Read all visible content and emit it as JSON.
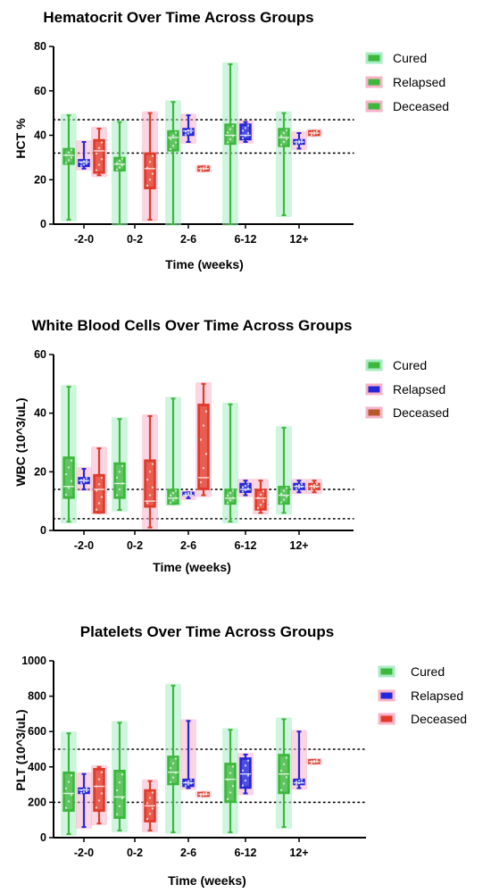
{
  "colors": {
    "cured": "#3db83d",
    "relapsed": "#2626d9",
    "deceased": "#e23a2a",
    "deceased_alt": "#b8592a",
    "halo_cured": "#a8ecc4",
    "halo_other": "#f7b3c8"
  },
  "chart_data": [
    {
      "type": "box",
      "title": "Hematocrit Over Time Across Groups",
      "xlabel": "Time (weeks)",
      "ylabel": "HCT %",
      "categories": [
        "-2-0",
        "0-2",
        "2-6",
        "6-12",
        "12+"
      ],
      "ylim": [
        0,
        80
      ],
      "yticks": [
        0,
        20,
        40,
        60,
        80
      ],
      "reference_lines": [
        32,
        47
      ],
      "legend": [
        "Cured",
        "Relapsed",
        "Deceased"
      ],
      "legend_position": "top-right",
      "series": [
        {
          "name": "Cured",
          "color_key": "cured",
          "boxes": [
            {
              "min": 2,
              "q1": 27,
              "median": 31,
              "q3": 34,
              "max": 49
            },
            {
              "min": 0,
              "q1": 24,
              "median": 27,
              "q3": 30,
              "max": 46
            },
            {
              "min": 0,
              "q1": 33,
              "median": 39,
              "q3": 42,
              "max": 55
            },
            {
              "min": 0,
              "q1": 36,
              "median": 40,
              "q3": 45,
              "max": 72
            },
            {
              "min": 4,
              "q1": 35,
              "median": 39,
              "q3": 43,
              "max": 50
            }
          ]
        },
        {
          "name": "Relapsed",
          "color_key": "relapsed",
          "boxes": [
            {
              "min": 25,
              "q1": 26,
              "median": 28,
              "q3": 29,
              "max": 37
            },
            null,
            {
              "min": 37,
              "q1": 40,
              "median": 42,
              "q3": 43,
              "max": 49
            },
            {
              "min": 37,
              "q1": 38,
              "median": 40,
              "q3": 45,
              "max": 46
            },
            {
              "min": 34,
              "q1": 36,
              "median": 37,
              "q3": 38,
              "max": 41
            }
          ]
        },
        {
          "name": "Deceased",
          "color_key": "deceased",
          "boxes": [
            {
              "min": 22,
              "q1": 23,
              "median": 33,
              "q3": 38,
              "max": 43
            },
            {
              "min": 2,
              "q1": 16,
              "median": 25,
              "q3": 32,
              "max": 50
            },
            {
              "min": 24,
              "q1": 24,
              "median": 25,
              "q3": 26,
              "max": 26
            },
            null,
            {
              "min": 40,
              "q1": 40,
              "median": 41,
              "q3": 42,
              "max": 42
            }
          ]
        }
      ]
    },
    {
      "type": "box",
      "title": "White Blood Cells Over Time Across Groups",
      "xlabel": "Time (weeks)",
      "ylabel": "WBC (10^3/uL)",
      "categories": [
        "-2-0",
        "0-2",
        "2-6",
        "6-12",
        "12+"
      ],
      "ylim": [
        0,
        60
      ],
      "yticks": [
        0,
        20,
        40,
        60
      ],
      "reference_lines": [
        4,
        14
      ],
      "legend": [
        "Cured",
        "Relapsed",
        "Deceased"
      ],
      "legend_position": "top-right",
      "series": [
        {
          "name": "Cured",
          "color_key": "cured",
          "boxes": [
            {
              "min": 3,
              "q1": 11,
              "median": 15,
              "q3": 25,
              "max": 49
            },
            {
              "min": 7,
              "q1": 11,
              "median": 16,
              "q3": 23,
              "max": 38
            },
            {
              "min": 9,
              "q1": 9,
              "median": 11,
              "q3": 14,
              "max": 45
            },
            {
              "min": 3,
              "q1": 9,
              "median": 11,
              "q3": 14,
              "max": 43
            },
            {
              "min": 6,
              "q1": 9,
              "median": 12,
              "q3": 15,
              "max": 35
            }
          ]
        },
        {
          "name": "Relapsed",
          "color_key": "relapsed",
          "boxes": [
            {
              "min": 14,
              "q1": 16,
              "median": 17,
              "q3": 18,
              "max": 21
            },
            null,
            {
              "min": 11,
              "q1": 12,
              "median": 12,
              "q3": 13,
              "max": 13
            },
            {
              "min": 12,
              "q1": 13,
              "median": 14,
              "q3": 16,
              "max": 17
            },
            {
              "min": 13,
              "q1": 14,
              "median": 15,
              "q3": 16,
              "max": 17
            }
          ]
        },
        {
          "name": "Deceased",
          "color_key": "deceased",
          "boxes": [
            {
              "min": 6,
              "q1": 6,
              "median": 14,
              "q3": 19,
              "max": 28
            },
            {
              "min": 1,
              "q1": 8,
              "median": 10,
              "q3": 24,
              "max": 39
            },
            {
              "min": 12,
              "q1": 14,
              "median": 18,
              "q3": 43,
              "max": 50
            },
            {
              "min": 6,
              "q1": 7,
              "median": 11,
              "q3": 14,
              "max": 17
            },
            {
              "min": 13,
              "q1": 14,
              "median": 15,
              "q3": 16,
              "max": 17
            }
          ]
        }
      ]
    },
    {
      "type": "box",
      "title": "Platelets Over Time Across Groups",
      "xlabel": "Time (weeks)",
      "ylabel": "PLT (10^3/uL)",
      "categories": [
        "-2-0",
        "0-2",
        "2-6",
        "6-12",
        "12+"
      ],
      "ylim": [
        0,
        1000
      ],
      "yticks": [
        0,
        200,
        400,
        600,
        800,
        1000
      ],
      "reference_lines": [
        200,
        500
      ],
      "legend": [
        "Cured",
        "Relapsed",
        "Deceased"
      ],
      "legend_position": "top-right",
      "series": [
        {
          "name": "Cured",
          "color_key": "cured",
          "boxes": [
            {
              "min": 20,
              "q1": 150,
              "median": 250,
              "q3": 370,
              "max": 590
            },
            {
              "min": 40,
              "q1": 110,
              "median": 230,
              "q3": 380,
              "max": 650
            },
            {
              "min": 30,
              "q1": 300,
              "median": 370,
              "q3": 460,
              "max": 860
            },
            {
              "min": 30,
              "q1": 200,
              "median": 330,
              "q3": 420,
              "max": 610
            },
            {
              "min": 60,
              "q1": 250,
              "median": 360,
              "q3": 470,
              "max": 670
            }
          ]
        },
        {
          "name": "Relapsed",
          "color_key": "relapsed",
          "boxes": [
            {
              "min": 60,
              "q1": 250,
              "median": 270,
              "q3": 280,
              "max": 360
            },
            null,
            {
              "min": 280,
              "q1": 290,
              "median": 310,
              "q3": 330,
              "max": 660
            },
            {
              "min": 250,
              "q1": 280,
              "median": 360,
              "q3": 450,
              "max": 470
            },
            {
              "min": 280,
              "q1": 300,
              "median": 310,
              "q3": 330,
              "max": 600
            }
          ]
        },
        {
          "name": "Deceased",
          "color_key": "deceased",
          "boxes": [
            {
              "min": 80,
              "q1": 150,
              "median": 290,
              "q3": 390,
              "max": 400
            },
            {
              "min": 40,
              "q1": 90,
              "median": 180,
              "q3": 270,
              "max": 320
            },
            {
              "min": 235,
              "q1": 235,
              "median": 245,
              "q3": 255,
              "max": 255
            },
            null,
            {
              "min": 420,
              "q1": 420,
              "median": 430,
              "q3": 440,
              "max": 440
            }
          ]
        }
      ]
    }
  ]
}
